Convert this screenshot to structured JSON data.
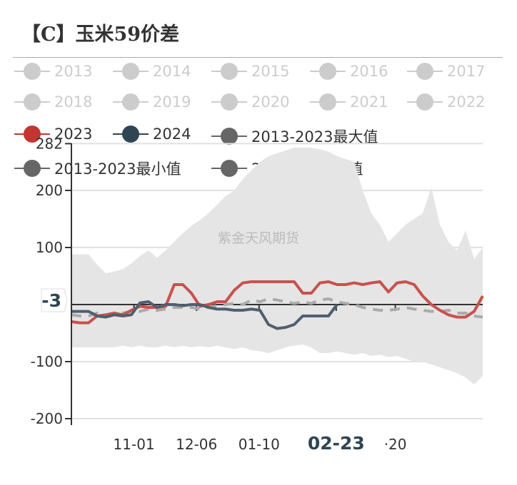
{
  "title": "【C】玉米59价差",
  "legend": [
    {
      "label": "2013",
      "color": "#cccccc",
      "active": false
    },
    {
      "label": "2014",
      "color": "#cccccc",
      "active": false
    },
    {
      "label": "2015",
      "color": "#cccccc",
      "active": false
    },
    {
      "label": "2016",
      "color": "#cccccc",
      "active": false
    },
    {
      "label": "2017",
      "color": "#cccccc",
      "active": false
    },
    {
      "label": "2018",
      "color": "#cccccc",
      "active": false
    },
    {
      "label": "2019",
      "color": "#cccccc",
      "active": false
    },
    {
      "label": "2020",
      "color": "#cccccc",
      "active": false
    },
    {
      "label": "2021",
      "color": "#cccccc",
      "active": false
    },
    {
      "label": "2022",
      "color": "#cccccc",
      "active": false
    },
    {
      "label": "2023",
      "color": "#c23531",
      "active": true
    },
    {
      "label": "2024",
      "color": "#2f4554",
      "active": true
    },
    {
      "label": "2013-2023最大值",
      "color": "#666666",
      "active": true
    },
    {
      "label": "2013-2023最小值",
      "color": "#666666",
      "active": true
    },
    {
      "label": "2013-2023均值",
      "color": "#666666",
      "active": true
    }
  ],
  "watermark": "紫金天风期货",
  "chart_data": {
    "type": "line",
    "ylim": [
      -200,
      282
    ],
    "yticks": [
      "282",
      "200",
      "100",
      "-100",
      "-200"
    ],
    "ytick_values": [
      282,
      200,
      100,
      -100,
      -200
    ],
    "y_pointer": {
      "label": "-3",
      "value": -3
    },
    "xticks": [
      {
        "label": "11-01",
        "index": 7.3
      },
      {
        "label": "12-06",
        "index": 14.6
      },
      {
        "label": "01-10",
        "index": 21.9
      },
      {
        "label": "02-23",
        "index": 30.9,
        "highlight": true
      },
      {
        "label": "·20",
        "index": 37.8
      }
    ],
    "band": {
      "name": "2013-2023最大值 / 2013-2023最小值",
      "color": "#e5e5e5",
      "max": [
        88,
        88,
        88,
        70,
        55,
        58,
        62,
        72,
        85,
        95,
        82,
        95,
        110,
        125,
        138,
        148,
        160,
        175,
        190,
        200,
        220,
        235,
        250,
        260,
        265,
        270,
        275,
        275,
        275,
        272,
        268,
        260,
        255,
        250,
        200,
        160,
        140,
        110,
        125,
        140,
        150,
        160,
        205,
        140,
        110,
        95,
        130,
        80,
        100
      ],
      "min": [
        -75,
        -75,
        -75,
        -75,
        -75,
        -75,
        -72,
        -75,
        -72,
        -75,
        -75,
        -72,
        -75,
        -72,
        -75,
        -73,
        -75,
        -72,
        -75,
        -78,
        -75,
        -80,
        -82,
        -85,
        -80,
        -75,
        -72,
        -70,
        -75,
        -85,
        -85,
        -82,
        -85,
        -88,
        -85,
        -90,
        -88,
        -92,
        -90,
        -95,
        -100,
        -100,
        -105,
        -110,
        -115,
        -120,
        -128,
        -140,
        -125
      ]
    },
    "series": [
      {
        "name": "2013-2023均值",
        "color": "#aaaaaa",
        "dashed": true,
        "values": [
          -18,
          -20,
          -20,
          -15,
          -18,
          -15,
          -15,
          -12,
          -12,
          -8,
          -10,
          -8,
          -5,
          -5,
          -5,
          -8,
          -5,
          -2,
          0,
          2,
          0,
          8,
          5,
          10,
          8,
          5,
          2,
          5,
          2,
          8,
          10,
          5,
          2,
          0,
          -5,
          -8,
          -10,
          -10,
          -8,
          -5,
          -8,
          -10,
          -12,
          -12,
          -10,
          -15,
          -15,
          -20,
          -22
        ]
      },
      {
        "name": "2023",
        "color": "#c9514d",
        "values": [
          -30,
          -32,
          -32,
          -20,
          -18,
          -15,
          -18,
          -10,
          -3,
          -5,
          -5,
          -3,
          35,
          35,
          20,
          -3,
          0,
          5,
          5,
          25,
          38,
          40,
          40,
          40,
          40,
          40,
          40,
          20,
          20,
          38,
          40,
          35,
          35,
          38,
          35,
          38,
          40,
          22,
          38,
          40,
          35,
          15,
          0,
          -10,
          -18,
          -22,
          -22,
          -12,
          15
        ]
      },
      {
        "name": "2024",
        "color": "#4f5f6e",
        "values": [
          -12,
          -12,
          -12,
          -20,
          -22,
          -18,
          -20,
          -18,
          3,
          5,
          -5,
          0,
          0,
          -2,
          0,
          0,
          -5,
          -8,
          -8,
          -10,
          -10,
          -8,
          -10,
          -35,
          -42,
          -40,
          -35,
          -20,
          -20,
          -20,
          -20,
          0
        ]
      }
    ]
  }
}
